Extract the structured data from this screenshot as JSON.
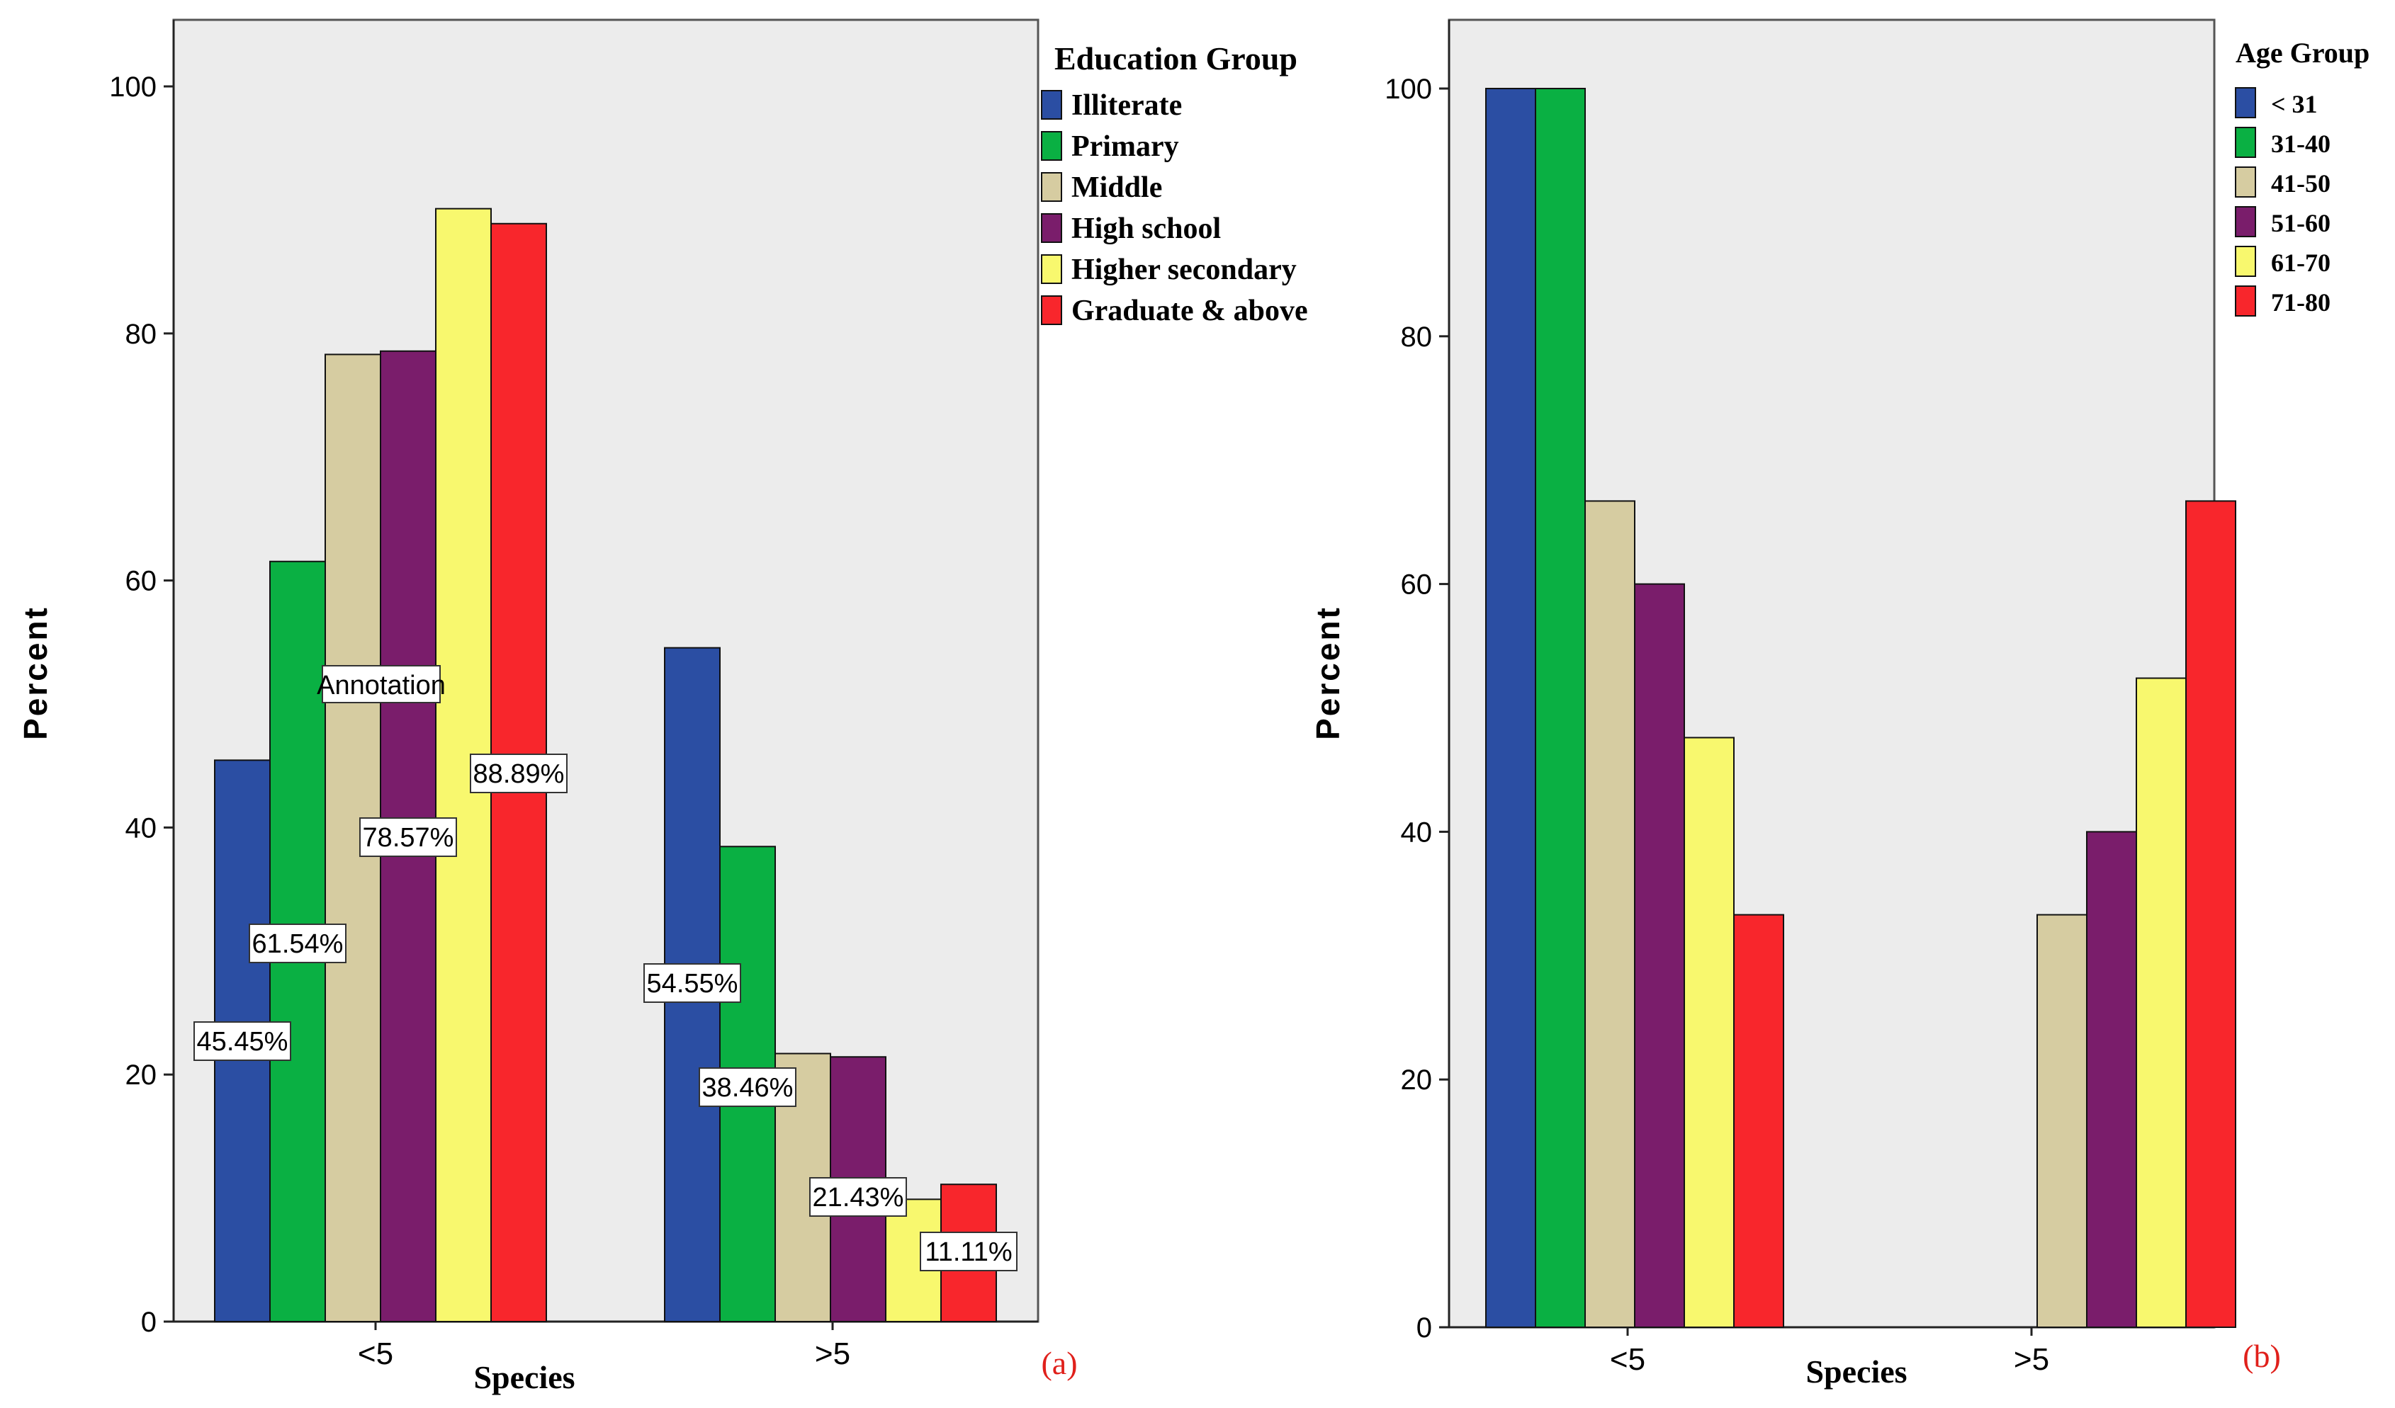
{
  "chart_data": [
    {
      "type": "bar",
      "panel_label": "(a)",
      "xlabel": "Species",
      "ylabel": "Percent",
      "ylim": [
        0,
        100
      ],
      "yticks": [
        0,
        20,
        40,
        60,
        80,
        100
      ],
      "categories": [
        "<5",
        ">5"
      ],
      "legend": {
        "title": "Education Group",
        "position": "right"
      },
      "series": [
        {
          "name": "Illiterate",
          "color": "#2b4ea3",
          "values": [
            45.45,
            54.55
          ],
          "labels": [
            "45.45%",
            "54.55%"
          ]
        },
        {
          "name": "Primary",
          "color": "#0ab043",
          "values": [
            61.54,
            38.46
          ],
          "labels": [
            "61.54%",
            "38.46%"
          ]
        },
        {
          "name": "Middle",
          "color": "#d6cca1",
          "values": [
            78.3,
            21.7
          ],
          "labels": [
            null,
            null
          ]
        },
        {
          "name": "High school",
          "color": "#7a1d6b",
          "values": [
            78.57,
            21.43
          ],
          "labels": [
            "78.57%",
            "21.43%"
          ]
        },
        {
          "name": "Higher secondary",
          "color": "#f8f86e",
          "values": [
            90.1,
            9.9
          ],
          "labels": [
            null,
            null
          ]
        },
        {
          "name": "Graduate & above",
          "color": "#f8262c",
          "values": [
            88.89,
            11.11
          ],
          "labels": [
            "88.89%",
            "11.11%"
          ]
        }
      ],
      "annotation": "Annotation"
    },
    {
      "type": "bar",
      "panel_label": "(b)",
      "xlabel": "Species",
      "ylabel": "Percent",
      "ylim": [
        0,
        100
      ],
      "yticks": [
        0,
        20,
        40,
        60,
        80,
        100
      ],
      "categories": [
        "<5",
        ">5"
      ],
      "legend": {
        "title": "Age Group",
        "position": "right"
      },
      "series": [
        {
          "name": "< 31",
          "color": "#2b4ea3",
          "values": [
            100,
            0
          ]
        },
        {
          "name": "31-40",
          "color": "#0ab043",
          "values": [
            100,
            0
          ]
        },
        {
          "name": "41-50",
          "color": "#d6cca1",
          "values": [
            66.7,
            33.3
          ]
        },
        {
          "name": "51-60",
          "color": "#7a1d6b",
          "values": [
            60,
            40
          ]
        },
        {
          "name": "61-70",
          "color": "#f8f86e",
          "values": [
            47.6,
            52.4
          ]
        },
        {
          "name": "71-80",
          "color": "#f8262c",
          "values": [
            33.3,
            66.7
          ]
        }
      ]
    }
  ]
}
